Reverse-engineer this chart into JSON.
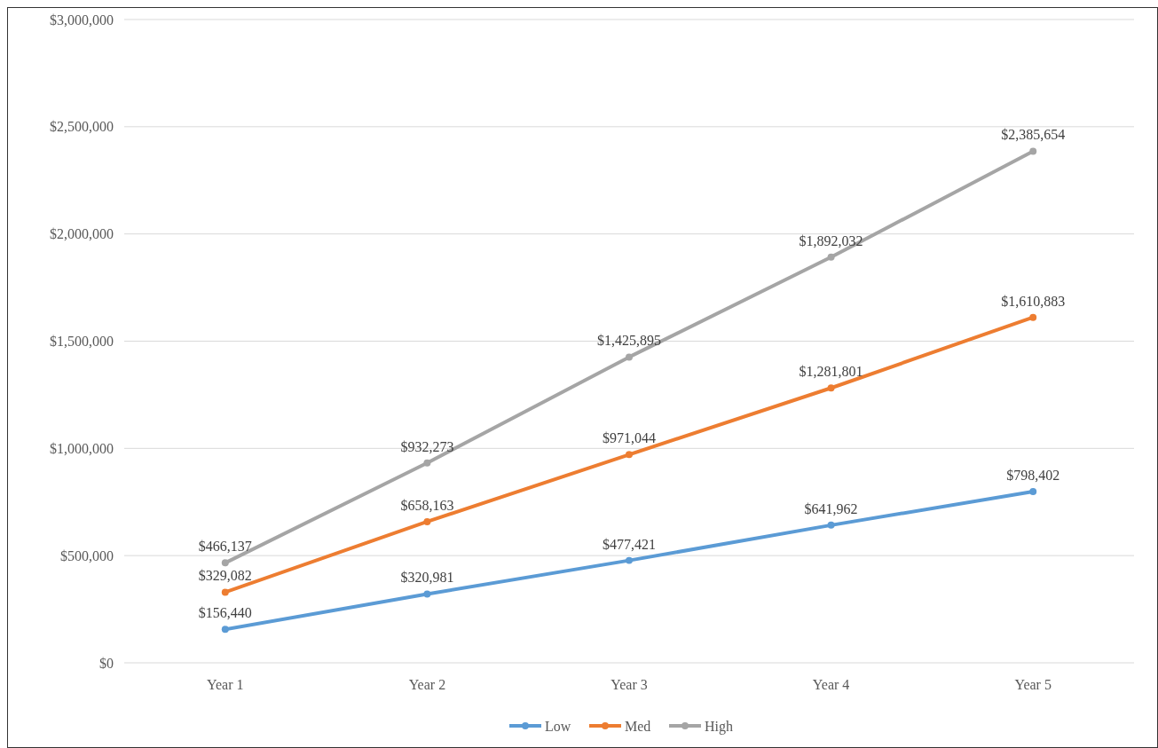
{
  "chart_data": {
    "type": "line",
    "categories": [
      "Year 1",
      "Year 2",
      "Year 3",
      "Year 4",
      "Year 5"
    ],
    "series": [
      {
        "name": "Low",
        "color": "#5b9bd5",
        "values": [
          156440,
          320981,
          477421,
          641962,
          798402
        ],
        "value_labels": [
          "$156,440",
          "$320,981",
          "$477,421",
          "$641,962",
          "$798,402"
        ]
      },
      {
        "name": "Med",
        "color": "#ed7d31",
        "values": [
          329082,
          658163,
          971044,
          1281801,
          1610883
        ],
        "value_labels": [
          "$329,082",
          "$658,163",
          "$971,044",
          "$1,281,801",
          "$1,610,883"
        ]
      },
      {
        "name": "High",
        "color": "#a5a5a5",
        "values": [
          466137,
          932273,
          1425895,
          1892032,
          2385654
        ],
        "value_labels": [
          "$466,137",
          "$932,273",
          "$1,425,895",
          "$1,892,032",
          "$2,385,654"
        ]
      }
    ],
    "ylim": [
      0,
      3000000
    ],
    "yticks": [
      {
        "value": 0,
        "label": "$0"
      },
      {
        "value": 500000,
        "label": "$500,000"
      },
      {
        "value": 1000000,
        "label": "$1,000,000"
      },
      {
        "value": 1500000,
        "label": "$1,500,000"
      },
      {
        "value": 2000000,
        "label": "$2,000,000"
      },
      {
        "value": 2500000,
        "label": "$2,500,000"
      },
      {
        "value": 3000000,
        "label": "$3,000,000"
      }
    ],
    "grid": "y",
    "legend": "bottom",
    "marker": "circle",
    "line_style": "solid"
  }
}
